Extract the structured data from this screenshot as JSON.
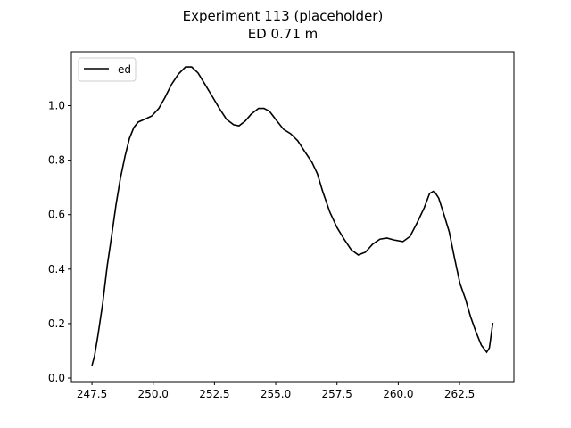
{
  "chart_data": {
    "type": "line",
    "title": "Experiment 113 (placeholder)",
    "subtitle": "ED 0.71 m",
    "x": [
      247.5,
      247.6,
      247.75,
      247.94,
      248.12,
      248.3,
      248.48,
      248.66,
      248.85,
      249.03,
      249.21,
      249.39,
      249.65,
      249.94,
      250.23,
      250.48,
      250.74,
      251.03,
      251.32,
      251.57,
      251.83,
      252.12,
      252.41,
      252.7,
      252.99,
      253.28,
      253.5,
      253.75,
      254.0,
      254.3,
      254.52,
      254.74,
      255.03,
      255.32,
      255.61,
      255.9,
      256.19,
      256.48,
      256.7,
      256.92,
      257.21,
      257.5,
      257.79,
      258.08,
      258.37,
      258.66,
      258.95,
      259.25,
      259.54,
      259.83,
      260.19,
      260.48,
      260.77,
      261.06,
      261.28,
      261.46,
      261.65,
      261.86,
      262.08,
      262.3,
      262.52,
      262.74,
      262.95,
      263.17,
      263.39,
      263.61,
      263.72,
      263.86
    ],
    "series": [
      {
        "name": "ed",
        "color": "#000000",
        "values": [
          0.046,
          0.079,
          0.16,
          0.275,
          0.41,
          0.52,
          0.635,
          0.733,
          0.815,
          0.88,
          0.92,
          0.94,
          0.95,
          0.962,
          0.99,
          1.03,
          1.077,
          1.116,
          1.142,
          1.142,
          1.12,
          1.077,
          1.034,
          0.99,
          0.95,
          0.93,
          0.926,
          0.943,
          0.969,
          0.99,
          0.99,
          0.98,
          0.946,
          0.913,
          0.897,
          0.871,
          0.831,
          0.792,
          0.75,
          0.684,
          0.609,
          0.553,
          0.51,
          0.471,
          0.452,
          0.462,
          0.491,
          0.51,
          0.514,
          0.507,
          0.501,
          0.52,
          0.57,
          0.625,
          0.678,
          0.687,
          0.661,
          0.602,
          0.537,
          0.439,
          0.347,
          0.291,
          0.226,
          0.17,
          0.121,
          0.095,
          0.111,
          0.203
        ]
      }
    ],
    "xlim": [
      246.66,
      264.72
    ],
    "xticks": [
      {
        "value": 247.5,
        "label": "247.5"
      },
      {
        "value": 250,
        "label": "250.0"
      },
      {
        "value": 252.5,
        "label": "252.5"
      },
      {
        "value": 255,
        "label": "255.0"
      },
      {
        "value": 257.5,
        "label": "257.5"
      },
      {
        "value": 260,
        "label": "260.0"
      },
      {
        "value": 262.5,
        "label": "262.5"
      }
    ],
    "ylim": [
      -0.013,
      1.198
    ],
    "yticks": [
      {
        "value": 0,
        "label": "0.0"
      },
      0.2,
      0.4,
      0.6,
      0.8,
      {
        "value": 1,
        "label": "1.0"
      }
    ],
    "legend": "upper left",
    "grid": false
  }
}
